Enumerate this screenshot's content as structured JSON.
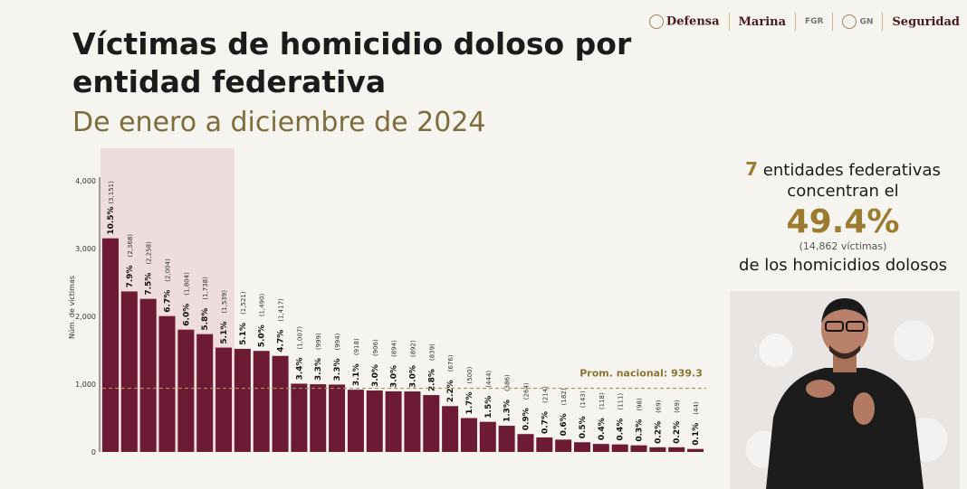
{
  "header": {
    "logos": [
      "Defensa",
      "Marina",
      "FGR",
      "GN",
      "Seguridad"
    ]
  },
  "title": "Víctimas de homicidio doloso por entidad federativa",
  "subtitle": "De enero a diciembre de 2024",
  "side_panel": {
    "line1_num": "7",
    "line1_text": "entidades federativas",
    "line2": "concentran el",
    "percent": "49.4%",
    "victims": "(14,862 víctimas)",
    "line3": "de los homicidios dolosos"
  },
  "colors": {
    "bar": "#6d1a34",
    "highlight": "#efdcdc",
    "accent": "#9b7b2f",
    "avg_line": "#a89456"
  },
  "chart_data": {
    "type": "bar",
    "ylabel": "Núm. de víctimas",
    "ylim": [
      0,
      4000
    ],
    "yticks": [
      0,
      1000,
      2000,
      3000,
      4000
    ],
    "ytick_labels": [
      "0",
      "1,000",
      "2,000",
      "3,000",
      "4,000"
    ],
    "values": [
      3151,
      2368,
      2258,
      2004,
      1804,
      1738,
      1539,
      1521,
      1490,
      1417,
      1007,
      999,
      994,
      918,
      906,
      894,
      892,
      839,
      676,
      500,
      444,
      386,
      264,
      214,
      182,
      143,
      118,
      111,
      98,
      69,
      69,
      44
    ],
    "value_labels": [
      "(3,151)",
      "(2,368)",
      "(2,258)",
      "(2,004)",
      "(1,804)",
      "(1,738)",
      "(1,539)",
      "(1,521)",
      "(1,490)",
      "(1,417)",
      "(1,007)",
      "(999)",
      "(994)",
      "(918)",
      "(906)",
      "(894)",
      "(892)",
      "(839)",
      "(676)",
      "(500)",
      "(444)",
      "(386)",
      "(264)",
      "(214)",
      "(182)",
      "(143)",
      "(118)",
      "(111)",
      "(98)",
      "(69)",
      "(69)",
      "(44)"
    ],
    "percent_labels": [
      "10.5%",
      "7.9%",
      "7.5%",
      "6.7%",
      "6.0%",
      "5.8%",
      "5.1%",
      "5.1%",
      "5.0%",
      "4.7%",
      "3.4%",
      "3.3%",
      "3.3%",
      "3.1%",
      "3.0%",
      "3.0%",
      "3.0%",
      "2.8%",
      "2.2%",
      "1.7%",
      "1.5%",
      "1.3%",
      "0.9%",
      "0.7%",
      "0.6%",
      "0.5%",
      "0.4%",
      "0.4%",
      "0.3%",
      "0.2%",
      "0.2%",
      "0.1%"
    ],
    "highlight_count": 7,
    "average": 939.3,
    "average_label": "Prom. nacional: 939.3"
  }
}
